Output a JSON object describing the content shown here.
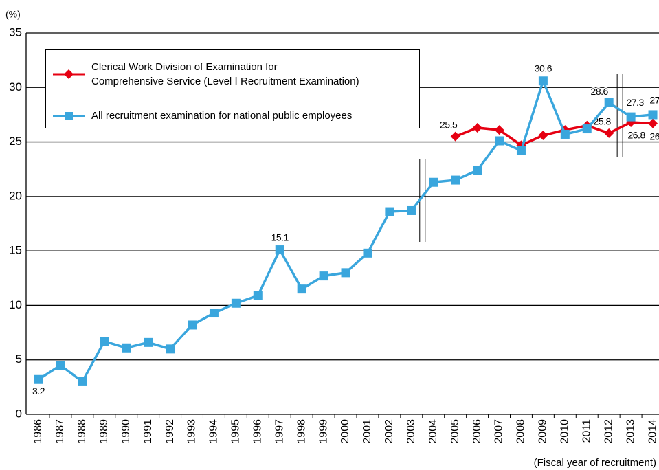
{
  "chart_data": {
    "type": "line",
    "y_unit_label": "(%)",
    "x_label": "(Fiscal year of recruitment)",
    "categories": [
      "1986",
      "1987",
      "1988",
      "1989",
      "1990",
      "1991",
      "1992",
      "1993",
      "1994",
      "1995",
      "1996",
      "1997",
      "1998",
      "1999",
      "2000",
      "2001",
      "2002",
      "2003",
      "2004",
      "2005",
      "2006",
      "2007",
      "2008",
      "2009",
      "2010",
      "2011",
      "2012",
      "2013",
      "2014"
    ],
    "series": [
      {
        "name": "Clerical Work Division of Examination for\nComprehensive Service (Level Ⅰ Recruitment Examination)",
        "color": "#e60012",
        "marker": "diamond",
        "values": [
          null,
          null,
          null,
          null,
          null,
          null,
          null,
          null,
          null,
          null,
          null,
          null,
          null,
          null,
          null,
          null,
          null,
          null,
          null,
          25.5,
          26.3,
          26.1,
          24.7,
          25.6,
          26.1,
          26.5,
          25.8,
          26.8,
          26.7
        ],
        "labeled": [
          19,
          26,
          27,
          28
        ]
      },
      {
        "name": "All recruitment examination for national public employees",
        "color": "#3aa6dd",
        "marker": "square",
        "values": [
          3.2,
          4.5,
          3.0,
          6.7,
          6.1,
          6.6,
          6.0,
          8.2,
          9.3,
          10.2,
          10.9,
          15.1,
          11.5,
          12.7,
          13.0,
          14.8,
          18.6,
          18.7,
          21.3,
          21.5,
          22.4,
          25.1,
          24.2,
          30.6,
          25.7,
          26.2,
          28.6,
          27.3,
          27.5
        ],
        "labeled": [
          0,
          11,
          23,
          26,
          27,
          28
        ]
      }
    ],
    "ylim": [
      0,
      35
    ],
    "yticks": [
      0,
      5,
      10,
      15,
      20,
      25,
      30,
      35
    ],
    "grid": true
  }
}
